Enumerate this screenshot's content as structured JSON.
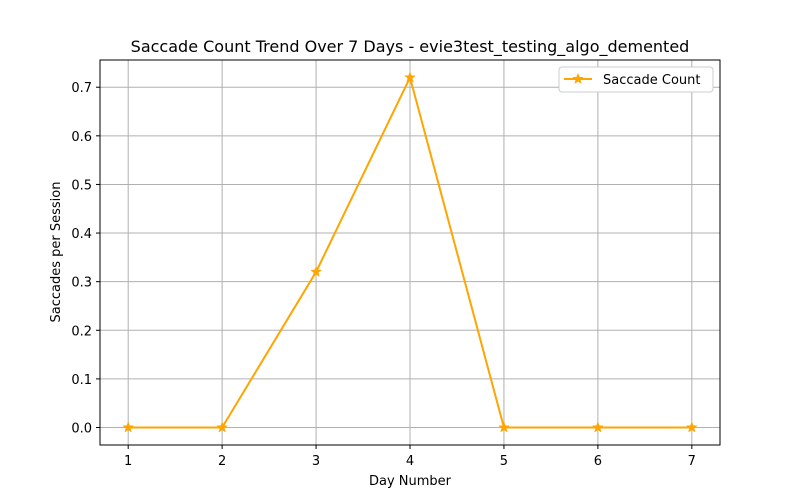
{
  "chart_data": {
    "type": "line",
    "title": "Saccade Count Trend Over 7 Days - evie3test_testing_algo_demented",
    "xlabel": "Day Number",
    "ylabel": "Saccades per Session",
    "x": [
      1,
      2,
      3,
      4,
      5,
      6,
      7
    ],
    "series": [
      {
        "name": "Saccade Count",
        "values": [
          0.0,
          0.0,
          0.32,
          0.72,
          0.0,
          0.0,
          0.0
        ],
        "color": "#ffa500",
        "marker": "star"
      }
    ],
    "xlim": [
      0.7,
      7.3
    ],
    "ylim": [
      -0.036,
      0.756
    ],
    "xticks": [
      "1",
      "2",
      "3",
      "4",
      "5",
      "6",
      "7"
    ],
    "yticks": [
      "0.0",
      "0.1",
      "0.2",
      "0.3",
      "0.4",
      "0.5",
      "0.6",
      "0.7"
    ],
    "grid": true,
    "legend": "top-right"
  }
}
